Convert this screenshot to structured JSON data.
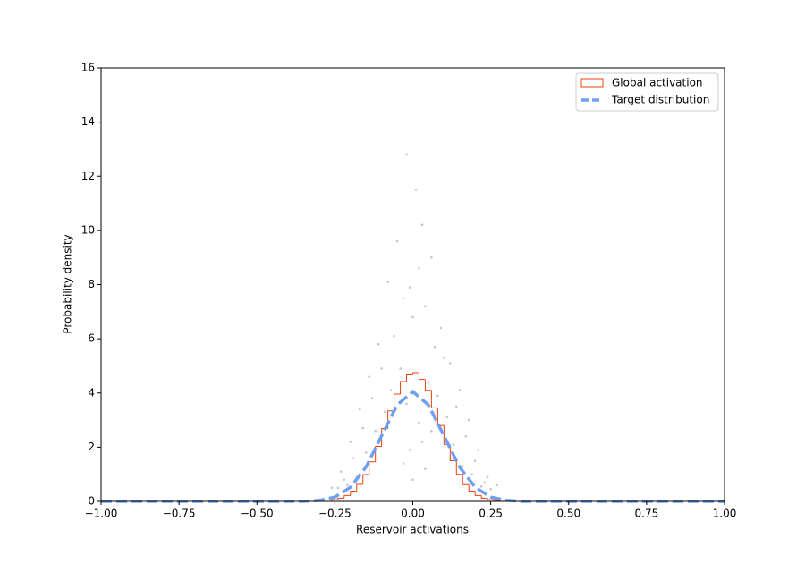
{
  "chart_data": {
    "type": "histogram",
    "xlabel": "Reservoir activations",
    "ylabel": "Probability density",
    "xlim": [
      -1,
      1
    ],
    "ylim": [
      0,
      16
    ],
    "xticks": [
      {
        "value": -1,
        "label": "−1.00"
      },
      {
        "value": -0.75,
        "label": "−0.75"
      },
      {
        "value": -0.5,
        "label": "−0.50"
      },
      {
        "value": -0.25,
        "label": "−0.25"
      },
      {
        "value": 0,
        "label": "0.00"
      },
      {
        "value": 0.25,
        "label": "0.25"
      },
      {
        "value": 0.5,
        "label": "0.50"
      },
      {
        "value": 0.75,
        "label": "0.75"
      },
      {
        "value": 1,
        "label": "1.00"
      }
    ],
    "yticks": [
      0,
      2,
      4,
      6,
      8,
      10,
      12,
      14,
      16
    ],
    "legend": "upper right",
    "histogram": {
      "name": "Global activation",
      "color": "#f0410f",
      "bins": [
        -0.26,
        -0.24,
        -0.22,
        -0.2,
        -0.18,
        -0.16,
        -0.14,
        -0.12,
        -0.1,
        -0.08,
        -0.06,
        -0.04,
        -0.02,
        0,
        0.02,
        0.04,
        0.06,
        0.08,
        0.1,
        0.12,
        0.14,
        0.16,
        0.18,
        0.2,
        0.22,
        0.24,
        0.26,
        0.28
      ],
      "values": [
        0.06,
        0.12,
        0.22,
        0.38,
        0.63,
        0.99,
        1.46,
        2.03,
        2.69,
        3.34,
        3.96,
        4.42,
        4.67,
        4.75,
        4.5,
        4.1,
        3.45,
        2.8,
        2.1,
        1.5,
        1.0,
        0.62,
        0.38,
        0.22,
        0.12,
        0.06,
        0.03
      ]
    },
    "series": [
      {
        "name": "Target distribution",
        "color": "#6f9ff0",
        "x": [
          -1,
          -0.5,
          -0.35,
          -0.3,
          -0.25,
          -0.2,
          -0.15,
          -0.1,
          -0.05,
          0,
          0.05,
          0.1,
          0.15,
          0.2,
          0.25,
          0.3,
          0.35,
          0.5,
          1
        ],
        "values": [
          0,
          0,
          0.001,
          0.04,
          0.16,
          0.52,
          1.27,
          2.42,
          3.56,
          4.05,
          3.56,
          2.42,
          1.27,
          0.52,
          0.16,
          0.04,
          0.001,
          0,
          0
        ]
      }
    ],
    "points": {
      "color": "#808080",
      "x": [
        -0.02,
        0.01,
        0.03,
        -0.05,
        0.06,
        -0.08,
        0.02,
        -0.01,
        0.04,
        -0.03,
        0.09,
        -0.11,
        0.12,
        -0.14,
        0.15,
        -0.17,
        0.18,
        -0.2,
        0.21,
        -0.23,
        0.24,
        -0.26,
        0.27,
        0.0,
        -0.06,
        0.07,
        -0.1,
        0.1,
        -0.13,
        0.14,
        -0.16,
        0.17,
        -0.19,
        0.2,
        -0.22,
        0.23,
        0.05,
        -0.04,
        0.08,
        -0.07,
        0.11,
        -0.09,
        0.13,
        -0.12,
        0.16,
        -0.15,
        0.19,
        -0.18,
        0.22,
        -0.21,
        0.25,
        -0.24,
        0.02,
        -0.02,
        0.04,
        -0.01,
        0.0,
        0.03,
        -0.03,
        0.06
      ],
      "y": [
        12.8,
        11.5,
        10.2,
        9.6,
        9.0,
        8.1,
        8.6,
        7.9,
        7.2,
        7.5,
        6.4,
        5.8,
        5.1,
        4.6,
        4.1,
        3.4,
        3.0,
        2.2,
        1.9,
        1.1,
        0.9,
        0.5,
        0.6,
        6.8,
        6.1,
        5.7,
        4.9,
        5.3,
        3.8,
        3.5,
        2.7,
        2.4,
        1.6,
        1.5,
        0.8,
        0.7,
        4.4,
        4.9,
        3.9,
        4.1,
        3.1,
        3.3,
        2.1,
        2.6,
        1.3,
        1.8,
        1.0,
        0.9,
        0.55,
        0.6,
        0.45,
        0.5,
        2.9,
        3.6,
        1.2,
        1.9,
        0.8,
        2.2,
        1.4,
        2.6
      ]
    }
  }
}
